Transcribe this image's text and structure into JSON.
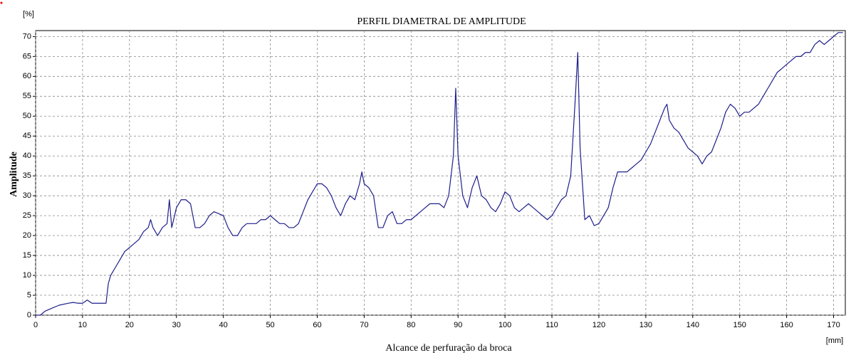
{
  "chart_data": {
    "type": "line",
    "title": "PERFIL DIAMETRAL DE AMPLITUDE",
    "y_label": "Amplitude",
    "x_label": "Alcance de perfuração da broca",
    "y_unit": "[%]",
    "x_unit": "[mm]",
    "x": [
      0,
      1,
      2,
      3,
      5,
      7,
      8,
      9,
      10,
      11,
      12,
      13,
      14,
      15,
      15.5,
      16,
      17,
      18,
      19,
      20,
      21,
      22,
      23,
      24,
      24.5,
      25,
      26,
      27,
      28,
      28.5,
      29,
      30,
      31,
      32,
      33,
      34,
      35,
      36,
      37,
      38,
      39,
      40,
      41,
      42,
      43,
      44,
      45,
      46,
      47,
      48,
      49,
      50,
      51,
      52,
      53,
      54,
      55,
      56,
      57,
      58,
      59,
      60,
      61,
      62,
      63,
      64,
      65,
      66,
      67,
      68,
      69,
      69.5,
      70,
      71,
      72,
      73,
      74,
      75,
      76,
      77,
      78,
      79,
      80,
      81,
      82,
      83,
      84,
      85,
      86,
      87,
      88,
      89,
      89.5,
      90,
      91,
      92,
      93,
      94,
      95,
      96,
      97,
      98,
      99,
      100,
      101,
      102,
      103,
      104,
      105,
      106,
      107,
      108,
      109,
      110,
      111,
      112,
      113,
      114,
      115,
      115.5,
      116,
      117,
      118,
      119,
      120,
      121,
      122,
      123,
      124,
      125,
      126,
      127,
      128,
      129,
      130,
      131,
      132,
      133,
      134,
      134.5,
      135,
      136,
      137,
      138,
      139,
      140,
      141,
      142,
      143,
      144,
      145,
      146,
      147,
      148,
      149,
      150,
      151,
      152,
      153,
      154,
      155,
      156,
      157,
      158,
      159,
      160,
      161,
      162,
      163,
      164,
      165,
      166,
      167,
      168,
      169,
      170,
      171,
      172
    ],
    "series": [
      {
        "name": "Amplitude",
        "color": "#1e1e8c",
        "values": [
          0,
          0,
          1,
          1.5,
          2.5,
          3,
          3.2,
          3,
          3,
          3.8,
          3,
          3,
          3,
          3,
          8,
          10,
          12,
          14,
          16,
          17,
          18,
          19,
          21,
          22,
          24,
          22,
          20,
          22,
          23,
          29,
          22,
          27,
          29,
          29,
          28,
          22,
          22,
          23,
          25,
          26,
          25.5,
          25,
          22,
          20,
          20,
          22,
          23,
          23,
          23,
          24,
          24,
          25,
          24,
          23,
          23,
          22,
          22,
          23,
          26,
          29,
          31,
          33,
          33,
          32,
          30,
          27,
          25,
          28,
          30,
          29,
          33,
          36,
          33,
          32,
          30,
          22,
          22,
          25,
          26,
          23,
          23,
          24,
          24,
          25,
          26,
          27,
          28,
          28,
          28,
          27,
          30,
          40,
          57,
          40,
          30,
          27,
          32,
          35,
          30,
          29,
          27,
          26,
          28,
          31,
          30,
          27,
          26,
          27,
          28,
          27,
          26,
          25,
          24,
          25,
          27,
          29,
          30,
          35,
          55,
          66,
          42,
          24,
          25,
          22.5,
          23,
          25,
          27,
          32,
          36,
          36,
          36,
          37,
          38,
          39,
          41,
          43,
          46,
          49,
          52,
          53,
          49,
          47,
          46,
          44,
          42,
          41,
          40,
          38,
          40,
          41,
          44,
          47,
          51,
          53,
          52,
          50,
          51,
          51,
          52,
          53,
          55,
          57,
          59,
          61,
          62,
          63,
          64,
          65,
          65,
          66,
          66,
          68,
          69,
          68,
          69,
          70,
          71,
          71
        ]
      }
    ],
    "xlim": [
      0,
      172.5
    ],
    "ylim": [
      0,
      71.5
    ],
    "xticks": [
      0,
      10,
      20,
      30,
      40,
      50,
      60,
      70,
      80,
      90,
      100,
      110,
      120,
      130,
      140,
      150,
      160,
      170
    ],
    "yticks": [
      0,
      5,
      10,
      15,
      20,
      25,
      30,
      35,
      40,
      45,
      50,
      55,
      60,
      65,
      70
    ],
    "grid": true
  }
}
